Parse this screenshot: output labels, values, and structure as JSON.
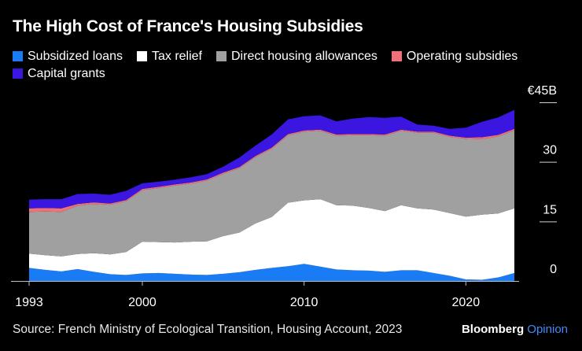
{
  "title": "The High Cost of France's Housing Subsidies",
  "source": "Source: French Ministry of Ecological Transition, Housing Account, 2023",
  "brand": {
    "name": "Bloomberg",
    "suffix": "Opinion"
  },
  "colors": {
    "subsidized_loans": "#1a7cf5",
    "tax_relief": "#ffffff",
    "direct_housing": "#a0a0a0",
    "operating": "#f07078",
    "capital": "#3a16e0",
    "brand_accent": "#3f8cff"
  },
  "chart_data": {
    "type": "area",
    "stacked": true,
    "title": "The High Cost of France's Housing Subsidies",
    "ylabel": "",
    "xlabel": "",
    "xlim": [
      1993,
      2023
    ],
    "ylim": [
      0,
      45
    ],
    "x_ticks": [
      "1993",
      "2000",
      "2010",
      "2020"
    ],
    "y_ticks": [
      {
        "value": 0,
        "label": "0"
      },
      {
        "value": 15,
        "label": "15"
      },
      {
        "value": 30,
        "label": "30"
      },
      {
        "value": 45,
        "label": "€45B"
      }
    ],
    "x": [
      1993,
      1994,
      1995,
      1996,
      1997,
      1998,
      1999,
      2000,
      2001,
      2002,
      2003,
      2004,
      2005,
      2006,
      2007,
      2008,
      2009,
      2010,
      2011,
      2012,
      2013,
      2014,
      2015,
      2016,
      2017,
      2018,
      2019,
      2020,
      2021,
      2022,
      2023
    ],
    "series": [
      {
        "key": "subsidized_loans",
        "name": "Subsidized loans",
        "values": [
          3.3,
          2.8,
          2.4,
          3.0,
          2.3,
          1.7,
          1.5,
          1.9,
          2.0,
          1.8,
          1.6,
          1.5,
          1.8,
          2.2,
          2.8,
          3.3,
          3.7,
          4.3,
          3.6,
          2.9,
          2.7,
          2.6,
          2.3,
          2.7,
          2.7,
          2.0,
          1.3,
          0.4,
          0.3,
          0.9,
          2.0
        ]
      },
      {
        "key": "tax_relief",
        "name": "Tax relief",
        "values": [
          3.6,
          3.7,
          3.8,
          3.8,
          4.7,
          5.0,
          5.8,
          8.0,
          7.8,
          7.9,
          8.3,
          8.5,
          9.5,
          10.0,
          11.7,
          12.8,
          16.0,
          16.0,
          17.0,
          16.2,
          16.3,
          15.8,
          15.3,
          16.4,
          15.6,
          16.0,
          15.8,
          15.8,
          16.4,
          16.1,
          16.3
        ]
      },
      {
        "key": "direct_housing",
        "name": "Direct housing allowances",
        "values": [
          10.5,
          11.0,
          11.2,
          12.2,
          12.4,
          12.5,
          12.8,
          13.0,
          13.6,
          14.3,
          14.6,
          15.3,
          15.7,
          16.2,
          16.7,
          17.2,
          17.0,
          17.3,
          17.2,
          17.5,
          17.7,
          18.3,
          19.0,
          18.7,
          19.0,
          19.3,
          19.2,
          19.6,
          19.0,
          19.4,
          19.6
        ]
      },
      {
        "key": "operating",
        "name": "Operating subsidies",
        "values": [
          0.9,
          0.9,
          0.9,
          0.4,
          0.4,
          0.3,
          0.3,
          0.3,
          0.3,
          0.3,
          0.3,
          0.3,
          0.3,
          0.3,
          0.3,
          0.3,
          0.3,
          0.3,
          0.3,
          0.3,
          0.3,
          0.3,
          0.3,
          0.3,
          0.3,
          0.3,
          0.3,
          0.3,
          0.5,
          0.4,
          0.4
        ]
      },
      {
        "key": "capital",
        "name": "Capital grants",
        "values": [
          2.2,
          2.2,
          2.3,
          2.5,
          2.2,
          2.2,
          2.3,
          1.4,
          1.3,
          1.2,
          1.3,
          1.3,
          1.5,
          2.4,
          2.6,
          3.3,
          3.7,
          3.6,
          3.6,
          3.3,
          3.9,
          4.3,
          4.2,
          3.3,
          1.8,
          1.5,
          1.7,
          2.5,
          3.9,
          4.4,
          4.8
        ]
      }
    ]
  }
}
